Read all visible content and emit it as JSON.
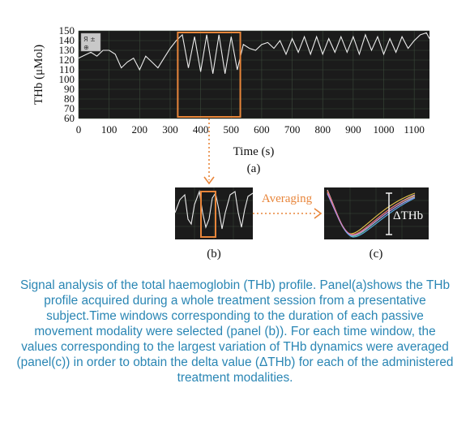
{
  "chart_data": [
    {
      "type": "line",
      "panel_label": "(a)",
      "xlabel": "Time (s)",
      "ylabel": "THb (μMol)",
      "xlim": [
        0,
        1150
      ],
      "ylim": [
        60,
        150
      ],
      "x_ticks": [
        "0",
        "100",
        "200",
        "300",
        "400",
        "500",
        "600",
        "700",
        "800",
        "900",
        "1000",
        "1100"
      ],
      "y_ticks": [
        "150",
        "140",
        "130",
        "120",
        "110",
        "100",
        "90",
        "80",
        "70",
        "60"
      ],
      "grid": true,
      "background": "#1b1b1b",
      "line_color": "#ececec",
      "highlight_color": "#e8853a",
      "highlight_window_x": [
        325,
        530
      ],
      "x": [
        0,
        20,
        40,
        60,
        80,
        100,
        120,
        140,
        160,
        180,
        200,
        220,
        240,
        260,
        280,
        300,
        320,
        340,
        360,
        380,
        400,
        420,
        440,
        460,
        480,
        500,
        520,
        540,
        560,
        580,
        600,
        620,
        640,
        660,
        680,
        700,
        720,
        740,
        760,
        780,
        800,
        820,
        840,
        860,
        880,
        900,
        920,
        940,
        960,
        980,
        1000,
        1020,
        1040,
        1060,
        1080,
        1100,
        1120,
        1140,
        1150
      ],
      "y": [
        122,
        125,
        128,
        124,
        130,
        130,
        126,
        112,
        118,
        122,
        110,
        124,
        118,
        112,
        122,
        132,
        140,
        146,
        112,
        144,
        108,
        146,
        106,
        146,
        106,
        144,
        110,
        136,
        132,
        130,
        136,
        138,
        132,
        140,
        126,
        142,
        128,
        144,
        126,
        144,
        126,
        142,
        128,
        144,
        128,
        144,
        126,
        146,
        130,
        144,
        126,
        142,
        128,
        144,
        132,
        140,
        146,
        148,
        142
      ]
    },
    {
      "type": "line",
      "panel_label": "(b)",
      "series_note": "zoomed THb window"
    },
    {
      "type": "line",
      "panel_label": "(c)",
      "annotation": "ΔTHb",
      "series_count": 6
    }
  ],
  "arrow_label": "Averaging",
  "caption": "Signal analysis of the total haemoglobin (THb) profile. Panel(a)shows the THb profile acquired during a whole treatment session from a presentative subject.Time windows corresponding to the duration of each passive movement modality were selected (panel (b)). For each time window, the values corresponding to the largest variation of THb dynamics were averaged (panel(c)) in order to obtain the delta value (ΔTHb) for each of the administered treatment modalities."
}
